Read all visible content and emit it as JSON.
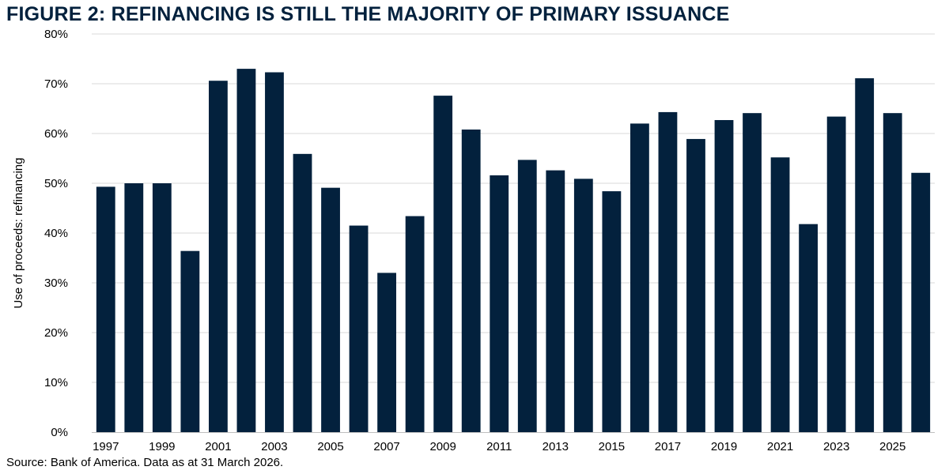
{
  "title": "FIGURE 2: REFINANCING IS STILL THE MAJORITY OF PRIMARY ISSUANCE",
  "source": "Source: Bank of America. Data as at 31 March 2026.",
  "colors": {
    "bar": "#03213d",
    "gridline": "#d9d9d9",
    "axis": "#bfbfbf"
  },
  "chart_data": {
    "type": "bar",
    "title": "FIGURE 2: REFINANCING IS STILL THE MAJORITY OF PRIMARY ISSUANCE",
    "xlabel": "",
    "ylabel": "Use of proceeds: refinancing",
    "ylim": [
      0,
      80
    ],
    "y_unit": "%",
    "grid": true,
    "legend": "none",
    "categories": [
      "1997",
      "1998",
      "1999",
      "2000",
      "2001",
      "2002",
      "2003",
      "2004",
      "2005",
      "2006",
      "2007",
      "2008",
      "2009",
      "2010",
      "2011",
      "2012",
      "2013",
      "2014",
      "2015",
      "2016",
      "2017",
      "2018",
      "2019",
      "2020",
      "2021",
      "2022",
      "2023",
      "2024",
      "2025",
      "2026"
    ],
    "values": [
      49.3,
      50.0,
      50.0,
      36.4,
      70.6,
      73.0,
      72.3,
      55.9,
      49.1,
      41.5,
      32.0,
      43.4,
      67.6,
      60.8,
      51.6,
      54.7,
      52.6,
      50.9,
      48.4,
      62.0,
      64.3,
      58.9,
      62.7,
      64.1,
      55.2,
      41.8,
      63.4,
      71.1,
      64.1,
      52.1
    ],
    "y_ticks": [
      "0%",
      "10%",
      "20%",
      "30%",
      "40%",
      "50%",
      "60%",
      "70%",
      "80%"
    ],
    "x_tick_labels": [
      "1997",
      "1999",
      "2001",
      "2003",
      "2005",
      "2007",
      "2009",
      "2011",
      "2013",
      "2015",
      "2017",
      "2019",
      "2021",
      "2023",
      "2025"
    ]
  }
}
